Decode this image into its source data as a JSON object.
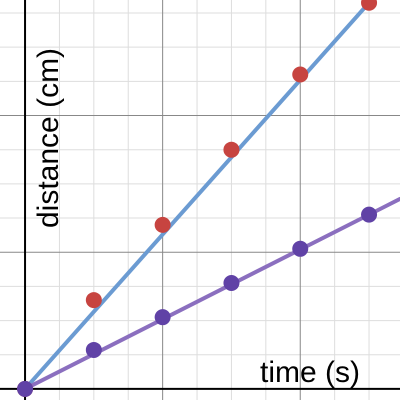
{
  "chart_data": {
    "type": "scatter",
    "title": "",
    "xlabel": "time (s)",
    "ylabel": "distance (cm)",
    "grid": true,
    "xlim": [
      -0.364,
      5.45
    ],
    "ylim": [
      -0.162,
      5.69
    ],
    "major_grid_step": 2,
    "minor_grid_step": 0.5,
    "series": [
      {
        "color": "#c74440",
        "line_color": "#6b9bd2",
        "points": [
          {
            "x": 0,
            "y": 0
          },
          {
            "x": 1,
            "y": 1.3
          },
          {
            "x": 2,
            "y": 2.4
          },
          {
            "x": 3,
            "y": 3.5
          },
          {
            "x": 4,
            "y": 4.6
          },
          {
            "x": 5,
            "y": 5.65
          }
        ],
        "fit": {
          "slope": 1.13,
          "intercept": 0
        }
      },
      {
        "color": "#6042a6",
        "line_color": "#8b6fbf",
        "points": [
          {
            "x": 0,
            "y": 0
          },
          {
            "x": 1,
            "y": 0.57
          },
          {
            "x": 2,
            "y": 1.05
          },
          {
            "x": 3,
            "y": 1.55
          },
          {
            "x": 4,
            "y": 2.05
          },
          {
            "x": 5,
            "y": 2.55
          }
        ],
        "fit": {
          "slope": 0.51,
          "intercept": 0
        }
      }
    ]
  }
}
